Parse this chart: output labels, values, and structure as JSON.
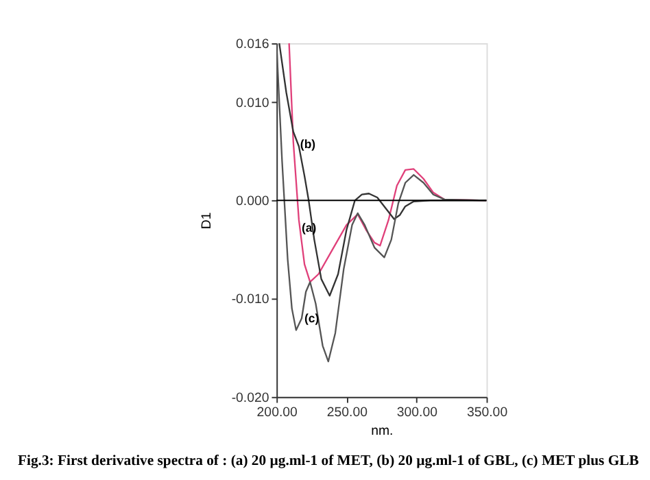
{
  "chart_data": {
    "type": "line",
    "xlabel": "nm.",
    "ylabel": "D1",
    "xlim": [
      200,
      350
    ],
    "ylim": [
      -0.02,
      0.016
    ],
    "xticks": [
      {
        "value": 200,
        "label": "200.00"
      },
      {
        "value": 250,
        "label": "250.00"
      },
      {
        "value": 300,
        "label": "300.00"
      },
      {
        "value": 350,
        "label": "350.00"
      }
    ],
    "yticks": [
      {
        "value": -0.02,
        "label": "-0.020"
      },
      {
        "value": -0.01,
        "label": "-0.010"
      },
      {
        "value": 0,
        "label": "0.000"
      },
      {
        "value": 0.01,
        "label": "0.010"
      },
      {
        "value": 0.016,
        "label": "0.016"
      }
    ],
    "marker": "none",
    "line_style": "solid",
    "series": [
      {
        "color": "#e0407a",
        "x": [
          209,
          212,
          216,
          220,
          224,
          230,
          240,
          250,
          258,
          264,
          270,
          274,
          280,
          286,
          292,
          298,
          305,
          312,
          320,
          350
        ],
        "values": [
          0.016,
          0.006,
          -0.002,
          -0.0065,
          -0.0083,
          -0.0075,
          -0.005,
          -0.0025,
          -0.0014,
          -0.003,
          -0.0043,
          -0.0046,
          -0.002,
          0.0015,
          0.0031,
          0.0032,
          0.0022,
          0.0008,
          0.0001,
          0
        ]
      },
      {
        "color": "#333333",
        "x": [
          202,
          207,
          212,
          216,
          220,
          223,
          227,
          232,
          238,
          244,
          250,
          256,
          261,
          266,
          272,
          278,
          284,
          288,
          292,
          298,
          310,
          350
        ],
        "values": [
          0.016,
          0.011,
          0.007,
          0.0055,
          0.0025,
          0,
          -0.004,
          -0.008,
          -0.0097,
          -0.0075,
          -0.003,
          0,
          0.0006,
          0.0007,
          0.0003,
          -0.0008,
          -0.0019,
          -0.0015,
          -0.0006,
          -0.0001,
          0,
          0
        ]
      },
      {
        "color": "#555555",
        "x": [
          200,
          204,
          208,
          211,
          214,
          218,
          221,
          224,
          228,
          233,
          237,
          242,
          248,
          254,
          258,
          263,
          270,
          277,
          282,
          287,
          292,
          298,
          305,
          312,
          320,
          350
        ],
        "values": [
          0.016,
          0.004,
          -0.006,
          -0.011,
          -0.0132,
          -0.012,
          -0.0093,
          -0.0083,
          -0.0105,
          -0.0148,
          -0.0164,
          -0.0135,
          -0.007,
          -0.0025,
          -0.0013,
          -0.0025,
          -0.0048,
          -0.0058,
          -0.004,
          -0.0003,
          0.0018,
          0.0026,
          0.0018,
          0.0006,
          0.0001,
          0
        ]
      }
    ],
    "ref_lines": [
      {
        "axis": "y",
        "value": 0,
        "color": "#000000"
      }
    ],
    "annotations": [
      {
        "text": "(b)",
        "x": 216,
        "y": 0.0057
      },
      {
        "text": "(a)",
        "x": 217,
        "y": -0.0028
      },
      {
        "text": "(c)",
        "x": 219,
        "y": -0.012
      },
      "Fig.3: First derivative spectra of : (a) 20 µg.ml-1 of  MET, (b)  20 µg.ml-1 of GBL, (c) MET plus GLB"
    ]
  }
}
